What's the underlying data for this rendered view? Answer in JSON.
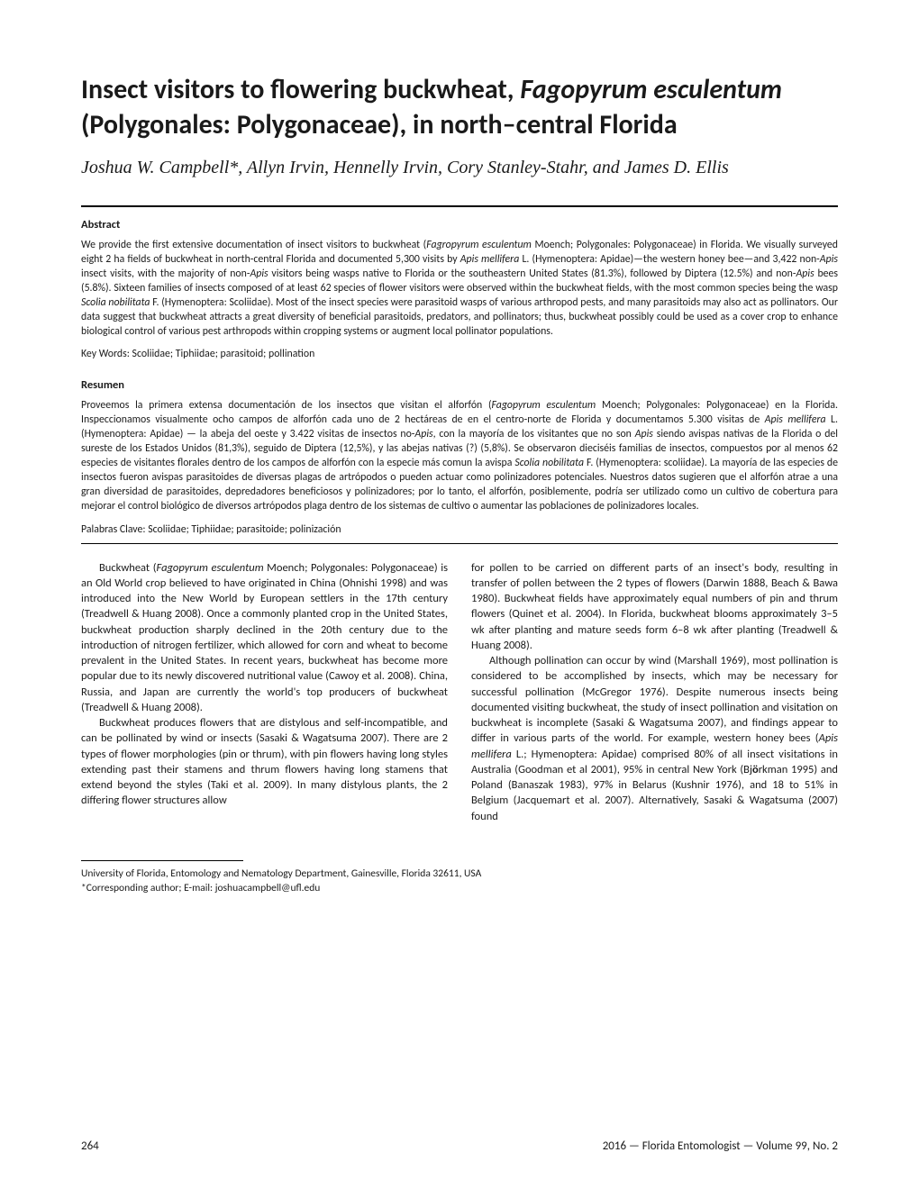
{
  "title": {
    "pre": "Insect visitors to flowering buckwheat, ",
    "italic1": "Fagopyrum esculentum",
    "post": " (Polygonales: Polygonaceae), in north–central Florida"
  },
  "authors": "Joshua W. Campbell*, Allyn Irvin, Hennelly Irvin, Cory Stanley-Stahr, and James D. Ellis",
  "abstract": {
    "heading": "Abstract",
    "p1a": "We provide the first extensive documentation of insect visitors to buckwheat (",
    "p1b": "Fagropyrum esculentum",
    "p1c": " Moench; Polygonales: Polygonaceae) in Florida. We visually surveyed eight 2 ha fields of buckwheat in north-central Florida and documented 5,300 visits by ",
    "p1d": "Apis mellifera",
    "p1e": " L. (Hymenoptera: Apidae)—the western honey bee—and 3,422 non-",
    "p1f": "Apis",
    "p1g": " insect visits, with the majority of non-",
    "p1h": "Apis",
    "p1i": " visitors being wasps native to Florida or the southeastern United States (81.3%), followed by Diptera (12.5%) and non-",
    "p1j": "Apis",
    "p1k": " bees (5.8%). Sixteen families of insects composed of at least 62 species of flower visitors were observed within the buckwheat fields, with the most common species being the wasp ",
    "p1l": "Scolia nobilitata",
    "p1m": " F. (Hymenoptera: Scoliidae). Most of the insect species were parasitoid wasps of various arthropod pests, and many parasitoids may also act as pollinators. Our data suggest that buckwheat attracts a great diversity of beneficial parasitoids, predators, and pollinators; thus, buckwheat possibly could be used as a cover crop to enhance biological control of various pest arthropods within cropping systems or augment local pollinator populations.",
    "keywords": "Key Words: Scoliidae; Tiphiidae; parasitoid; pollination"
  },
  "resumen": {
    "heading": "Resumen",
    "p1a": "Proveemos la primera extensa documentación de los insectos que visitan el alforfón (",
    "p1b": "Fagopyrum esculentum",
    "p1c": " Moench; Polygonales: Polygonaceae) en la Florida. Inspeccionamos visualmente ocho campos de alforfón cada uno de 2 hectáreas de en el centro-norte de Florida y documentamos 5.300 visitas de ",
    "p1d": "Apis mellifera",
    "p1e": " L. (Hymenoptera: Apidae) — la abeja del oeste y 3.422 visitas de insectos no-",
    "p1f": "Apis",
    "p1g": ", con la mayoría de los visitantes que no son ",
    "p1h": "Apis",
    "p1i": " siendo avispas nativas de la Florida o del sureste de los Estados Unidos (81,3%), seguido de Diptera (12,5%), y las abejas nativas (?) (5,8%). Se observaron dieciséis familias de insectos, compuestos por al menos 62 especies de visitantes florales dentro de los campos de alforfón con la especie más comun la avispa ",
    "p1j": "Scolia nobilitata",
    "p1k": " F. (Hymenoptera: scoliidae). La mayoría de las especies de insectos fueron avispas parasitoides de diversas plagas de artrópodos o pueden actuar como polinizadores potenciales. Nuestros datos sugieren que el alforfón atrae a una gran diversidad de parasitoides, depredadores beneficiosos y polinizadores; por lo tanto, el alforfón, posiblemente, podría ser utilizado como un cultivo de cobertura para mejorar el control biológico de diversos artrópodos plaga dentro de los sistemas de cultivo o aumentar las poblaciones de polinizadores locales.",
    "palabras": "Palabras Clave: Scoliidae; Tiphiidae; parasitoide; polinización"
  },
  "body": {
    "left": {
      "p1a": "Buckwheat (",
      "p1b": "Fagopyrum esculentum",
      "p1c": " Moench; Polygonales: Polygonaceae) is an Old World crop believed to have originated in China (Ohnishi 1998) and was introduced into the New World by European settlers in the 17th century (Treadwell & Huang 2008). Once a commonly planted crop in the United States, buckwheat production sharply declined in the 20th century due to the introduction of nitrogen fertilizer, which allowed for corn and wheat to become prevalent in the United States. In recent years, buckwheat has become more popular due to its newly discovered nutritional value (Cawoy et al. 2008). China, Russia, and Japan are currently the world's top producers of buckwheat (Treadwell & Huang 2008).",
      "p2": "Buckwheat produces flowers that are distylous and self-incompatible, and can be pollinated by wind or insects (Sasaki & Wagatsuma 2007). There are 2 types of flower morphologies (pin or thrum), with pin flowers having long styles extending past their stamens and thrum flowers having long stamens that extend beyond the styles (Taki et al. 2009). In many distylous plants, the 2 differing flower structures allow"
    },
    "right": {
      "p1": "for pollen to be carried on different parts of an insect's body, resulting in transfer of pollen between the 2 types of flowers (Darwin 1888, Beach & Bawa 1980). Buckwheat fields have approximately equal numbers of pin and thrum flowers (Quinet et al. 2004). In Florida, buckwheat blooms approximately 3–5 wk after planting and mature seeds form 6–8 wk after planting (Treadwell & Huang 2008).",
      "p2a": "Although pollination can occur by wind (Marshall 1969), most pollination is considered to be accomplished by insects, which may be necessary for successful pollination (McGregor 1976). Despite numerous insects being documented visiting buckwheat, the study of insect pollination and visitation on buckwheat is incomplete (Sasaki & Wagatsuma 2007), and findings appear to differ in various parts of the world. For example, western honey bees (",
      "p2b": "Apis mellifera",
      "p2c": " L.; Hymenoptera: Apidae) comprised 80% of all insect visitations in Australia (Goodman et al 2001), 95% in central New York (Bj",
      "p2d": "ö",
      "p2e": "rkman 1995) and Poland (Banaszak 1983), 97% in Belarus (Kushnir 1976), and 18 to 51% in Belgium (Jacquemart et al. 2007). Alternatively, Sasaki & Wagatsuma (2007) found"
    }
  },
  "footnotes": {
    "line1": "University of Florida, Entomology and Nematology Department, Gainesville, Florida 32611, USA",
    "line2": "*Corresponding author; E-mail: joshuacampbell@ufl.edu"
  },
  "footer": {
    "page": "264",
    "journal": "2016 — Florida Entomologist — Volume 99, No. 2"
  }
}
